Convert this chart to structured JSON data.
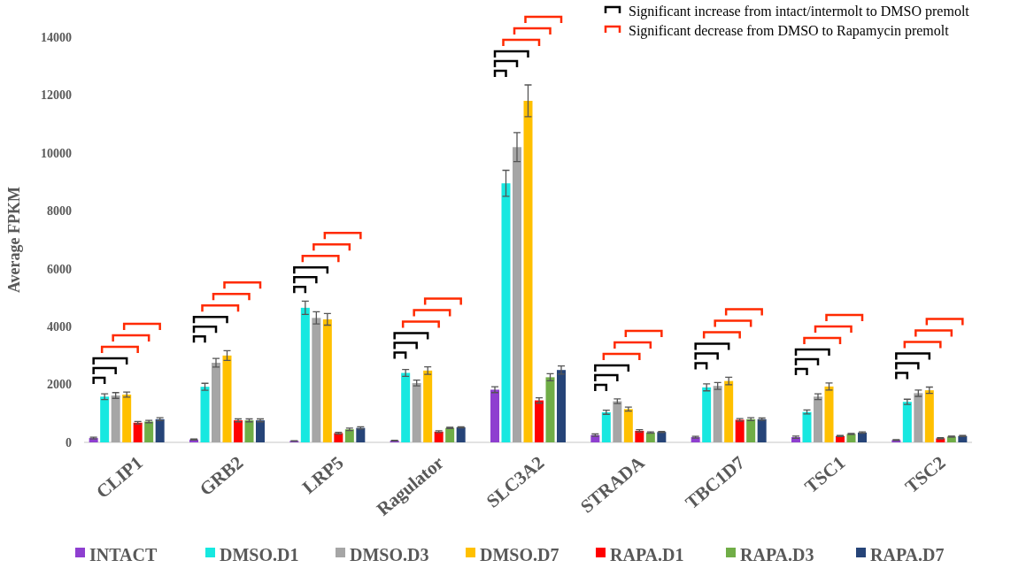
{
  "chart_data": {
    "type": "bar",
    "ylabel": "Average FPKM",
    "categories": [
      "CLIP1",
      "GRB2",
      "LRP5",
      "Ragulator",
      "SLC3A2",
      "STRADA",
      "TBC1D7",
      "TSC1",
      "TSC2"
    ],
    "series": [
      {
        "name": "INTACT",
        "color": "#8e3fd0",
        "values": [
          150,
          100,
          50,
          60,
          1820,
          250,
          180,
          180,
          80
        ],
        "errors": [
          30,
          20,
          10,
          10,
          100,
          40,
          30,
          40,
          15
        ]
      },
      {
        "name": "DMSO.D1",
        "color": "#17e8e0",
        "values": [
          1580,
          1920,
          4650,
          2400,
          8950,
          1040,
          1900,
          1050,
          1400
        ],
        "errors": [
          100,
          120,
          230,
          120,
          450,
          70,
          120,
          70,
          90
        ]
      },
      {
        "name": "DMSO.D3",
        "color": "#a6a6a6",
        "values": [
          1620,
          2750,
          4300,
          2050,
          10200,
          1420,
          1950,
          1580,
          1700
        ],
        "errors": [
          100,
          150,
          210,
          100,
          500,
          80,
          120,
          100,
          110
        ]
      },
      {
        "name": "DMSO.D7",
        "color": "#ffc000",
        "values": [
          1650,
          3000,
          4250,
          2480,
          11800,
          1150,
          2120,
          1930,
          1800
        ],
        "errors": [
          90,
          170,
          200,
          130,
          550,
          70,
          130,
          120,
          110
        ]
      },
      {
        "name": "RAPA.D1",
        "color": "#ff0000",
        "values": [
          680,
          760,
          320,
          370,
          1450,
          400,
          780,
          220,
          140
        ],
        "errors": [
          40,
          50,
          30,
          30,
          90,
          40,
          40,
          20,
          20
        ]
      },
      {
        "name": "RAPA.D3",
        "color": "#70ad47",
        "values": [
          720,
          760,
          450,
          500,
          2250,
          340,
          800,
          290,
          200
        ],
        "errors": [
          40,
          50,
          40,
          20,
          120,
          20,
          50,
          20,
          20
        ]
      },
      {
        "name": "RAPA.D7",
        "color": "#264478",
        "values": [
          800,
          760,
          500,
          520,
          2500,
          360,
          800,
          340,
          220
        ],
        "errors": [
          50,
          50,
          40,
          20,
          140,
          20,
          40,
          20,
          20
        ]
      }
    ],
    "ylim": [
      0,
      14000
    ],
    "yticks": [
      0,
      2000,
      4000,
      6000,
      8000,
      10000,
      12000,
      14000
    ],
    "grid": false,
    "legend": "bottom",
    "annotations": [
      "Significant increase from intact/intermolt to DMSO premolt",
      "Significant decrease from DMSO to Rapamycin premolt"
    ]
  }
}
